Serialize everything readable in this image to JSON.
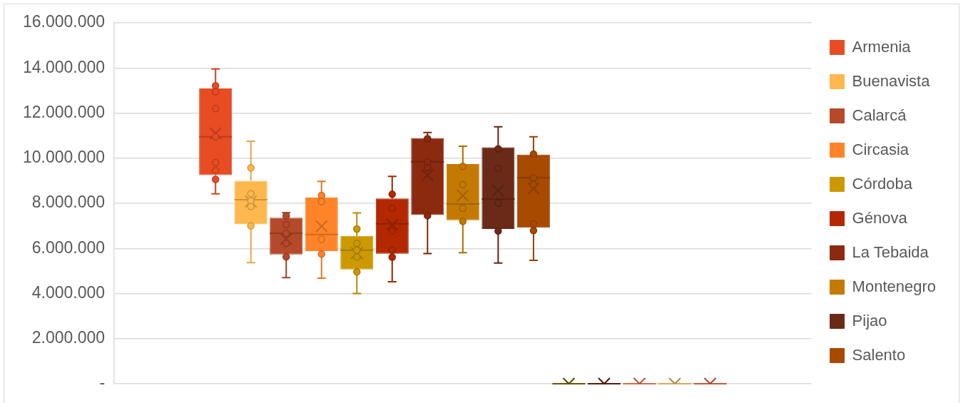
{
  "chart_data": {
    "type": "box",
    "categories": [
      null
    ],
    "ylim": [
      0,
      16000000
    ],
    "yticks": [
      {
        "value": 0,
        "label": "-"
      },
      {
        "value": 2000000,
        "label": "2.000.000"
      },
      {
        "value": 4000000,
        "label": "4.000.000"
      },
      {
        "value": 6000000,
        "label": "6.000.000"
      },
      {
        "value": 8000000,
        "label": "8.000.000"
      },
      {
        "value": 10000000,
        "label": "10.000.000"
      },
      {
        "value": 12000000,
        "label": "12.000.000"
      },
      {
        "value": 14000000,
        "label": "14.000.000"
      },
      {
        "value": 16000000,
        "label": "16.000.000"
      }
    ],
    "grid": "y",
    "legend": "right",
    "tick_labels": "y",
    "marker": "circle",
    "series": [
      {
        "name": "Armenia",
        "color": "#e84c22",
        "boxes": [
          {
            "low": 8420000,
            "q1": 9250000,
            "median": 10950000,
            "q3": 13090000,
            "high": 13950000,
            "mean": 11100000,
            "outliers": [
              13210000,
              12950000,
              12200000,
              10950000,
              9810000,
              9450000,
              9060000
            ]
          }
        ]
      },
      {
        "name": "Buenavista",
        "color": "#ffb84d",
        "boxes": [
          {
            "low": 5370000,
            "q1": 7070000,
            "median": 8160000,
            "q3": 9000000,
            "high": 10750000,
            "mean": 8080000,
            "outliers": [
              9570000,
              8430000,
              8100000,
              7860000,
              7000000
            ]
          }
        ]
      },
      {
        "name": "Calarcá",
        "color": "#b5492a",
        "boxes": [
          {
            "low": 4700000,
            "q1": 5730000,
            "median": 6670000,
            "q3": 7360000,
            "high": 7580000,
            "mean": 6420000,
            "outliers": [
              7440000,
              7050000,
              6670000,
              6220000,
              5630000
            ]
          }
        ]
      },
      {
        "name": "Circasia",
        "color": "#ff8429",
        "boxes": [
          {
            "low": 4680000,
            "q1": 5880000,
            "median": 6620000,
            "q3": 8250000,
            "high": 8970000,
            "mean": 6980000,
            "outliers": [
              8350000,
              8080000,
              6400000,
              5750000
            ]
          }
        ]
      },
      {
        "name": "Córdoba",
        "color": "#cc9900",
        "boxes": [
          {
            "low": 4000000,
            "q1": 5070000,
            "median": 5920000,
            "q3": 6550000,
            "high": 7570000,
            "mean": 5790000,
            "outliers": [
              6860000,
              6230000,
              5920000,
              5620000,
              4960000
            ]
          }
        ]
      },
      {
        "name": "Génova",
        "color": "#b32800",
        "boxes": [
          {
            "low": 4520000,
            "q1": 5760000,
            "median": 7090000,
            "q3": 8210000,
            "high": 9190000,
            "mean": 7050000,
            "outliers": [
              8400000,
              7780000,
              6770000,
              5930000,
              5610000
            ]
          }
        ]
      },
      {
        "name": "La Tebaida",
        "color": "#8c2a10",
        "boxes": [
          {
            "low": 5770000,
            "q1": 7490000,
            "median": 9840000,
            "q3": 10890000,
            "high": 11140000,
            "mean": 9250000,
            "outliers": [
              10860000,
              9840000,
              9580000,
              7450000
            ]
          }
        ]
      },
      {
        "name": "Montenegro",
        "color": "#c47a00",
        "boxes": [
          {
            "low": 5810000,
            "q1": 7250000,
            "median": 7970000,
            "q3": 9740000,
            "high": 10530000,
            "mean": 8340000,
            "outliers": [
              9640000,
              8830000,
              7780000,
              7200000
            ]
          }
        ]
      },
      {
        "name": "Pijao",
        "color": "#6b2918",
        "boxes": [
          {
            "low": 5350000,
            "q1": 6860000,
            "median": 8190000,
            "q3": 10480000,
            "high": 11390000,
            "mean": 8560000,
            "outliers": [
              10410000,
              9540000,
              8010000,
              6770000
            ]
          }
        ]
      },
      {
        "name": "Salento",
        "color": "#a84a00",
        "boxes": [
          {
            "low": 5470000,
            "q1": 6920000,
            "median": 9130000,
            "q3": 10160000,
            "high": 10950000,
            "mean": 8660000,
            "outliers": [
              10180000,
              9130000,
              8840000,
              7080000,
              6790000
            ]
          }
        ]
      },
      {
        "color": "#6e5400",
        "boxes": [
          {
            "low": 0,
            "q1": 0,
            "median": 0,
            "q3": 0,
            "high": 0,
            "mean": 0
          }
        ]
      },
      {
        "color": "#5e1a0a",
        "boxes": [
          {
            "low": 0,
            "q1": 0,
            "median": 0,
            "q3": 0,
            "high": 0,
            "mean": 0
          }
        ]
      },
      {
        "color": "#d4694c",
        "boxes": [
          {
            "low": 0,
            "q1": 0,
            "median": 0,
            "q3": 0,
            "high": 0,
            "mean": 0
          }
        ]
      },
      {
        "color": "#dba95c",
        "boxes": [
          {
            "low": 0,
            "q1": 0,
            "median": 0,
            "q3": 0,
            "high": 0,
            "mean": 0
          }
        ]
      },
      {
        "color": "#c55a3c",
        "boxes": [
          {
            "low": 0,
            "q1": 0,
            "median": 0,
            "q3": 0,
            "high": 0,
            "mean": 0
          }
        ]
      }
    ]
  }
}
